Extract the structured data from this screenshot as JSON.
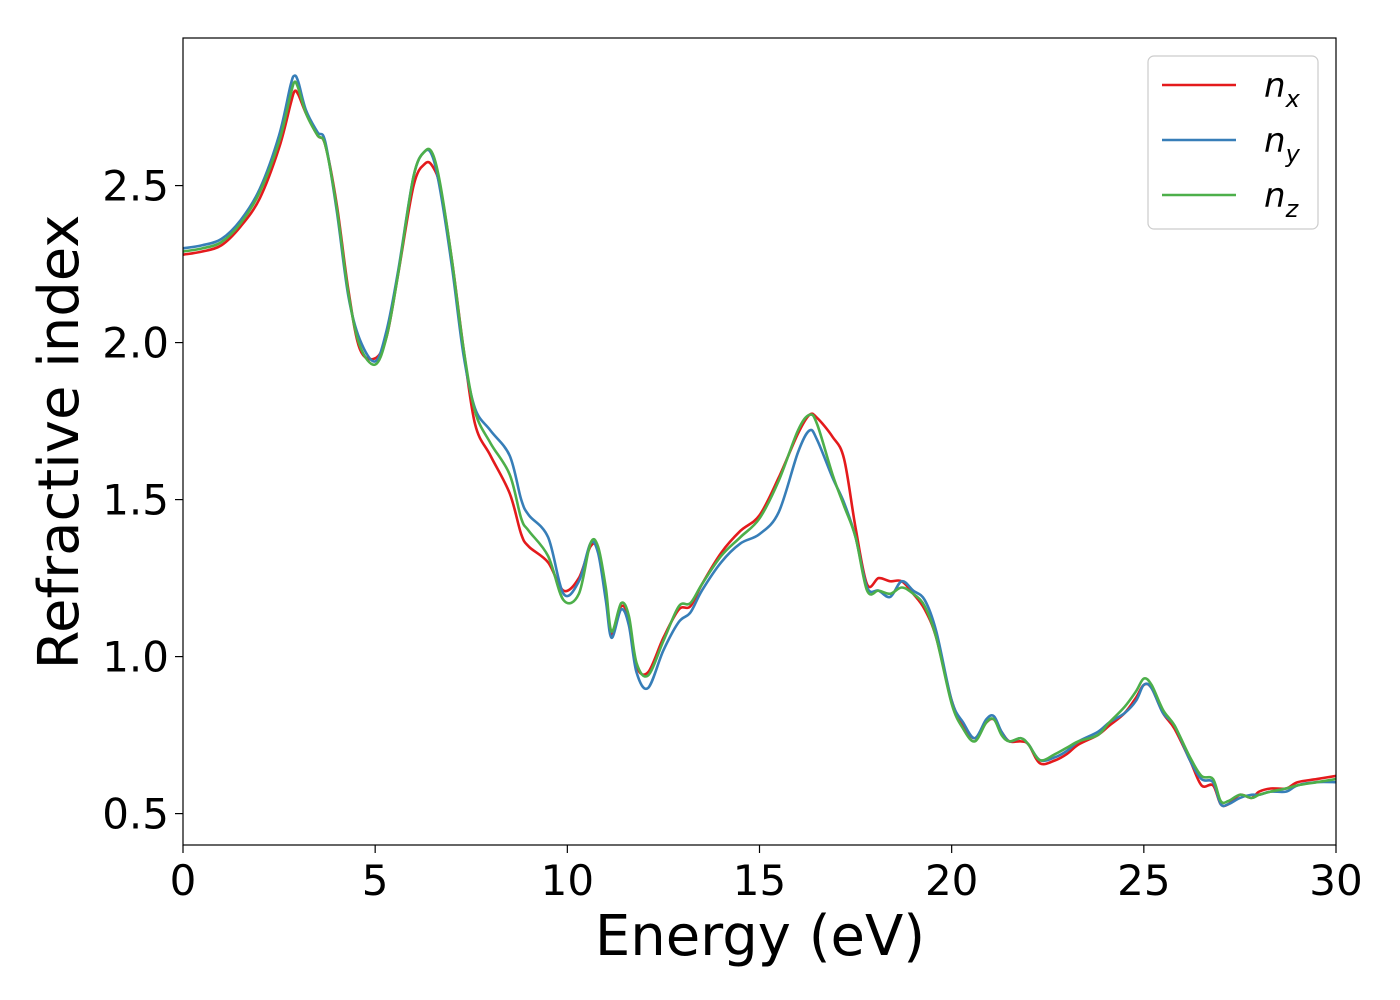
{
  "chart_data": {
    "type": "line",
    "xlabel": "Energy (eV)",
    "ylabel": "Refractive index",
    "xlim": [
      0,
      30
    ],
    "ylim": [
      0.4,
      2.97
    ],
    "xticks": [
      0,
      5,
      10,
      15,
      20,
      25,
      30
    ],
    "xtick_labels": [
      "0",
      "5",
      "10",
      "15",
      "20",
      "25",
      "30"
    ],
    "yticks": [
      0.5,
      1.0,
      1.5,
      2.0,
      2.5
    ],
    "ytick_labels": [
      "0.5",
      "1.0",
      "1.5",
      "2.0",
      "2.5"
    ],
    "grid": false,
    "legend_position": "top-right",
    "series": [
      {
        "name": "n",
        "subscript": "x",
        "color": "#e41a1c",
        "x": [
          0,
          0.5,
          1,
          1.5,
          2,
          2.5,
          2.8,
          2.9,
          3.0,
          3.2,
          3.5,
          3.7,
          4.0,
          4.3,
          4.6,
          5.0,
          5.3,
          5.6,
          6.0,
          6.3,
          6.5,
          6.7,
          7.0,
          7.3,
          7.6,
          8.0,
          8.5,
          8.8,
          9.0,
          9.5,
          9.9,
          10.3,
          10.6,
          10.8,
          11.0,
          11.15,
          11.4,
          11.6,
          11.8,
          12.1,
          12.5,
          12.9,
          13.2,
          13.5,
          14.0,
          14.5,
          15.0,
          15.5,
          16.0,
          16.3,
          16.5,
          16.9,
          17.2,
          17.5,
          17.8,
          18.1,
          18.4,
          18.7,
          19.0,
          19.3,
          19.6,
          20.0,
          20.3,
          20.6,
          20.9,
          21.1,
          21.3,
          21.5,
          21.8,
          22.0,
          22.3,
          22.7,
          23.0,
          23.3,
          23.8,
          24.1,
          24.5,
          24.8,
          25.0,
          25.2,
          25.5,
          25.8,
          26.2,
          26.5,
          26.8,
          27.0,
          27.2,
          27.5,
          27.8,
          28.0,
          28.3,
          28.7,
          29.0,
          29.5,
          30.0
        ],
        "y": [
          2.28,
          2.29,
          2.31,
          2.37,
          2.46,
          2.62,
          2.76,
          2.8,
          2.79,
          2.73,
          2.66,
          2.63,
          2.44,
          2.17,
          1.98,
          1.95,
          2.02,
          2.22,
          2.5,
          2.57,
          2.56,
          2.49,
          2.26,
          1.98,
          1.74,
          1.64,
          1.52,
          1.39,
          1.35,
          1.3,
          1.21,
          1.25,
          1.35,
          1.34,
          1.2,
          1.07,
          1.16,
          1.12,
          0.97,
          0.95,
          1.06,
          1.15,
          1.16,
          1.23,
          1.33,
          1.4,
          1.45,
          1.57,
          1.71,
          1.77,
          1.76,
          1.7,
          1.63,
          1.41,
          1.23,
          1.25,
          1.24,
          1.24,
          1.2,
          1.15,
          1.06,
          0.86,
          0.78,
          0.74,
          0.79,
          0.8,
          0.76,
          0.73,
          0.73,
          0.72,
          0.66,
          0.67,
          0.69,
          0.72,
          0.75,
          0.78,
          0.82,
          0.87,
          0.91,
          0.9,
          0.82,
          0.77,
          0.67,
          0.59,
          0.59,
          0.53,
          0.53,
          0.56,
          0.55,
          0.57,
          0.58,
          0.58,
          0.6,
          0.61,
          0.62
        ]
      },
      {
        "name": "n",
        "subscript": "y",
        "color": "#377eb8",
        "x": [
          0,
          0.5,
          1,
          1.5,
          2,
          2.5,
          2.8,
          2.9,
          3.0,
          3.2,
          3.5,
          3.7,
          4.0,
          4.3,
          4.6,
          5.0,
          5.3,
          5.6,
          6.0,
          6.3,
          6.5,
          6.7,
          7.0,
          7.3,
          7.6,
          8.0,
          8.5,
          8.8,
          9.0,
          9.5,
          9.9,
          10.3,
          10.6,
          10.8,
          11.0,
          11.15,
          11.4,
          11.6,
          11.8,
          12.1,
          12.5,
          12.9,
          13.2,
          13.5,
          14.0,
          14.5,
          15.0,
          15.5,
          16.0,
          16.3,
          16.5,
          16.9,
          17.2,
          17.5,
          17.8,
          18.1,
          18.4,
          18.7,
          19.0,
          19.3,
          19.6,
          20.0,
          20.3,
          20.6,
          20.9,
          21.1,
          21.3,
          21.5,
          21.8,
          22.0,
          22.3,
          22.7,
          23.0,
          23.3,
          23.8,
          24.1,
          24.5,
          24.8,
          25.0,
          25.2,
          25.5,
          25.8,
          26.2,
          26.5,
          26.8,
          27.0,
          27.2,
          27.5,
          27.8,
          28.0,
          28.3,
          28.7,
          29.0,
          29.5,
          30.0
        ],
        "y": [
          2.3,
          2.31,
          2.33,
          2.39,
          2.49,
          2.66,
          2.82,
          2.85,
          2.83,
          2.74,
          2.67,
          2.64,
          2.42,
          2.15,
          2.01,
          1.94,
          2.04,
          2.23,
          2.53,
          2.61,
          2.59,
          2.48,
          2.24,
          1.96,
          1.79,
          1.72,
          1.64,
          1.5,
          1.45,
          1.38,
          1.2,
          1.24,
          1.36,
          1.33,
          1.18,
          1.06,
          1.15,
          1.1,
          0.95,
          0.9,
          1.02,
          1.11,
          1.14,
          1.21,
          1.3,
          1.36,
          1.39,
          1.46,
          1.65,
          1.72,
          1.69,
          1.57,
          1.49,
          1.38,
          1.22,
          1.21,
          1.19,
          1.24,
          1.21,
          1.18,
          1.08,
          0.86,
          0.79,
          0.74,
          0.8,
          0.81,
          0.76,
          0.73,
          0.74,
          0.72,
          0.67,
          0.68,
          0.7,
          0.73,
          0.76,
          0.79,
          0.82,
          0.86,
          0.91,
          0.9,
          0.82,
          0.78,
          0.67,
          0.61,
          0.6,
          0.53,
          0.53,
          0.55,
          0.56,
          0.56,
          0.57,
          0.57,
          0.59,
          0.6,
          0.6
        ]
      },
      {
        "name": "n",
        "subscript": "z",
        "color": "#4daf4a",
        "x": [
          0,
          0.5,
          1,
          1.5,
          2,
          2.5,
          2.8,
          2.9,
          3.0,
          3.2,
          3.5,
          3.7,
          4.0,
          4.3,
          4.6,
          5.0,
          5.3,
          5.6,
          6.0,
          6.3,
          6.5,
          6.7,
          7.0,
          7.3,
          7.6,
          8.0,
          8.5,
          8.8,
          9.0,
          9.5,
          9.9,
          10.3,
          10.6,
          10.8,
          11.0,
          11.15,
          11.4,
          11.6,
          11.8,
          12.1,
          12.5,
          12.9,
          13.2,
          13.5,
          14.0,
          14.5,
          15.0,
          15.5,
          16.0,
          16.3,
          16.5,
          16.9,
          17.2,
          17.5,
          17.8,
          18.1,
          18.4,
          18.7,
          19.0,
          19.3,
          19.6,
          20.0,
          20.3,
          20.6,
          20.9,
          21.1,
          21.3,
          21.5,
          21.8,
          22.0,
          22.3,
          22.7,
          23.0,
          23.3,
          23.8,
          24.1,
          24.5,
          24.8,
          25.0,
          25.2,
          25.5,
          25.8,
          26.2,
          26.5,
          26.8,
          27.0,
          27.2,
          27.5,
          27.8,
          28.0,
          28.3,
          28.7,
          29.0,
          29.5,
          30.0
        ],
        "y": [
          2.29,
          2.3,
          2.32,
          2.38,
          2.48,
          2.64,
          2.79,
          2.83,
          2.81,
          2.73,
          2.66,
          2.63,
          2.43,
          2.16,
          1.99,
          1.93,
          2.02,
          2.22,
          2.53,
          2.61,
          2.6,
          2.5,
          2.26,
          1.98,
          1.78,
          1.68,
          1.58,
          1.44,
          1.4,
          1.32,
          1.18,
          1.2,
          1.36,
          1.35,
          1.22,
          1.08,
          1.17,
          1.13,
          0.98,
          0.94,
          1.05,
          1.16,
          1.17,
          1.23,
          1.32,
          1.38,
          1.44,
          1.56,
          1.72,
          1.77,
          1.74,
          1.58,
          1.48,
          1.38,
          1.21,
          1.21,
          1.2,
          1.22,
          1.2,
          1.16,
          1.06,
          0.85,
          0.77,
          0.73,
          0.79,
          0.8,
          0.75,
          0.73,
          0.74,
          0.72,
          0.67,
          0.69,
          0.71,
          0.73,
          0.75,
          0.79,
          0.84,
          0.89,
          0.93,
          0.91,
          0.83,
          0.78,
          0.68,
          0.62,
          0.61,
          0.54,
          0.54,
          0.56,
          0.55,
          0.56,
          0.57,
          0.58,
          0.59,
          0.6,
          0.61
        ]
      }
    ]
  }
}
